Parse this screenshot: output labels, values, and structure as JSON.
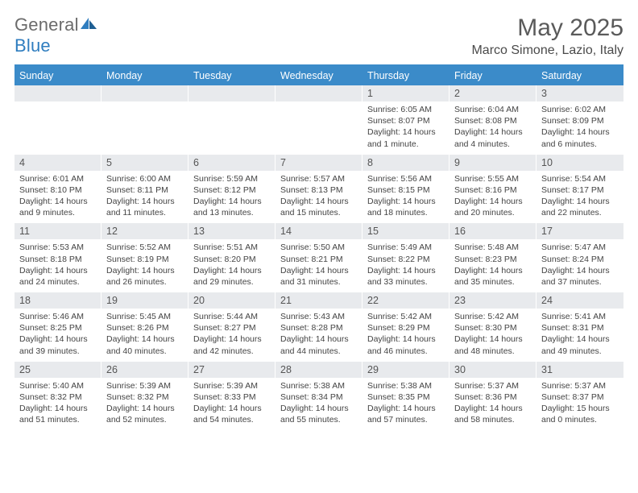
{
  "brand": {
    "general": "General",
    "blue": "Blue"
  },
  "title": "May 2025",
  "location": "Marco Simone, Lazio, Italy",
  "colors": {
    "header_bar": "#3b8bc9",
    "daynum_bg": "#e8eaed",
    "text": "#444444",
    "title_color": "#5a5a5a"
  },
  "weekdays": [
    "Sunday",
    "Monday",
    "Tuesday",
    "Wednesday",
    "Thursday",
    "Friday",
    "Saturday"
  ],
  "weeks": [
    [
      null,
      null,
      null,
      null,
      {
        "n": "1",
        "sunrise": "Sunrise: 6:05 AM",
        "sunset": "Sunset: 8:07 PM",
        "day1": "Daylight: 14 hours",
        "day2": "and 1 minute."
      },
      {
        "n": "2",
        "sunrise": "Sunrise: 6:04 AM",
        "sunset": "Sunset: 8:08 PM",
        "day1": "Daylight: 14 hours",
        "day2": "and 4 minutes."
      },
      {
        "n": "3",
        "sunrise": "Sunrise: 6:02 AM",
        "sunset": "Sunset: 8:09 PM",
        "day1": "Daylight: 14 hours",
        "day2": "and 6 minutes."
      }
    ],
    [
      {
        "n": "4",
        "sunrise": "Sunrise: 6:01 AM",
        "sunset": "Sunset: 8:10 PM",
        "day1": "Daylight: 14 hours",
        "day2": "and 9 minutes."
      },
      {
        "n": "5",
        "sunrise": "Sunrise: 6:00 AM",
        "sunset": "Sunset: 8:11 PM",
        "day1": "Daylight: 14 hours",
        "day2": "and 11 minutes."
      },
      {
        "n": "6",
        "sunrise": "Sunrise: 5:59 AM",
        "sunset": "Sunset: 8:12 PM",
        "day1": "Daylight: 14 hours",
        "day2": "and 13 minutes."
      },
      {
        "n": "7",
        "sunrise": "Sunrise: 5:57 AM",
        "sunset": "Sunset: 8:13 PM",
        "day1": "Daylight: 14 hours",
        "day2": "and 15 minutes."
      },
      {
        "n": "8",
        "sunrise": "Sunrise: 5:56 AM",
        "sunset": "Sunset: 8:15 PM",
        "day1": "Daylight: 14 hours",
        "day2": "and 18 minutes."
      },
      {
        "n": "9",
        "sunrise": "Sunrise: 5:55 AM",
        "sunset": "Sunset: 8:16 PM",
        "day1": "Daylight: 14 hours",
        "day2": "and 20 minutes."
      },
      {
        "n": "10",
        "sunrise": "Sunrise: 5:54 AM",
        "sunset": "Sunset: 8:17 PM",
        "day1": "Daylight: 14 hours",
        "day2": "and 22 minutes."
      }
    ],
    [
      {
        "n": "11",
        "sunrise": "Sunrise: 5:53 AM",
        "sunset": "Sunset: 8:18 PM",
        "day1": "Daylight: 14 hours",
        "day2": "and 24 minutes."
      },
      {
        "n": "12",
        "sunrise": "Sunrise: 5:52 AM",
        "sunset": "Sunset: 8:19 PM",
        "day1": "Daylight: 14 hours",
        "day2": "and 26 minutes."
      },
      {
        "n": "13",
        "sunrise": "Sunrise: 5:51 AM",
        "sunset": "Sunset: 8:20 PM",
        "day1": "Daylight: 14 hours",
        "day2": "and 29 minutes."
      },
      {
        "n": "14",
        "sunrise": "Sunrise: 5:50 AM",
        "sunset": "Sunset: 8:21 PM",
        "day1": "Daylight: 14 hours",
        "day2": "and 31 minutes."
      },
      {
        "n": "15",
        "sunrise": "Sunrise: 5:49 AM",
        "sunset": "Sunset: 8:22 PM",
        "day1": "Daylight: 14 hours",
        "day2": "and 33 minutes."
      },
      {
        "n": "16",
        "sunrise": "Sunrise: 5:48 AM",
        "sunset": "Sunset: 8:23 PM",
        "day1": "Daylight: 14 hours",
        "day2": "and 35 minutes."
      },
      {
        "n": "17",
        "sunrise": "Sunrise: 5:47 AM",
        "sunset": "Sunset: 8:24 PM",
        "day1": "Daylight: 14 hours",
        "day2": "and 37 minutes."
      }
    ],
    [
      {
        "n": "18",
        "sunrise": "Sunrise: 5:46 AM",
        "sunset": "Sunset: 8:25 PM",
        "day1": "Daylight: 14 hours",
        "day2": "and 39 minutes."
      },
      {
        "n": "19",
        "sunrise": "Sunrise: 5:45 AM",
        "sunset": "Sunset: 8:26 PM",
        "day1": "Daylight: 14 hours",
        "day2": "and 40 minutes."
      },
      {
        "n": "20",
        "sunrise": "Sunrise: 5:44 AM",
        "sunset": "Sunset: 8:27 PM",
        "day1": "Daylight: 14 hours",
        "day2": "and 42 minutes."
      },
      {
        "n": "21",
        "sunrise": "Sunrise: 5:43 AM",
        "sunset": "Sunset: 8:28 PM",
        "day1": "Daylight: 14 hours",
        "day2": "and 44 minutes."
      },
      {
        "n": "22",
        "sunrise": "Sunrise: 5:42 AM",
        "sunset": "Sunset: 8:29 PM",
        "day1": "Daylight: 14 hours",
        "day2": "and 46 minutes."
      },
      {
        "n": "23",
        "sunrise": "Sunrise: 5:42 AM",
        "sunset": "Sunset: 8:30 PM",
        "day1": "Daylight: 14 hours",
        "day2": "and 48 minutes."
      },
      {
        "n": "24",
        "sunrise": "Sunrise: 5:41 AM",
        "sunset": "Sunset: 8:31 PM",
        "day1": "Daylight: 14 hours",
        "day2": "and 49 minutes."
      }
    ],
    [
      {
        "n": "25",
        "sunrise": "Sunrise: 5:40 AM",
        "sunset": "Sunset: 8:32 PM",
        "day1": "Daylight: 14 hours",
        "day2": "and 51 minutes."
      },
      {
        "n": "26",
        "sunrise": "Sunrise: 5:39 AM",
        "sunset": "Sunset: 8:32 PM",
        "day1": "Daylight: 14 hours",
        "day2": "and 52 minutes."
      },
      {
        "n": "27",
        "sunrise": "Sunrise: 5:39 AM",
        "sunset": "Sunset: 8:33 PM",
        "day1": "Daylight: 14 hours",
        "day2": "and 54 minutes."
      },
      {
        "n": "28",
        "sunrise": "Sunrise: 5:38 AM",
        "sunset": "Sunset: 8:34 PM",
        "day1": "Daylight: 14 hours",
        "day2": "and 55 minutes."
      },
      {
        "n": "29",
        "sunrise": "Sunrise: 5:38 AM",
        "sunset": "Sunset: 8:35 PM",
        "day1": "Daylight: 14 hours",
        "day2": "and 57 minutes."
      },
      {
        "n": "30",
        "sunrise": "Sunrise: 5:37 AM",
        "sunset": "Sunset: 8:36 PM",
        "day1": "Daylight: 14 hours",
        "day2": "and 58 minutes."
      },
      {
        "n": "31",
        "sunrise": "Sunrise: 5:37 AM",
        "sunset": "Sunset: 8:37 PM",
        "day1": "Daylight: 15 hours",
        "day2": "and 0 minutes."
      }
    ]
  ]
}
